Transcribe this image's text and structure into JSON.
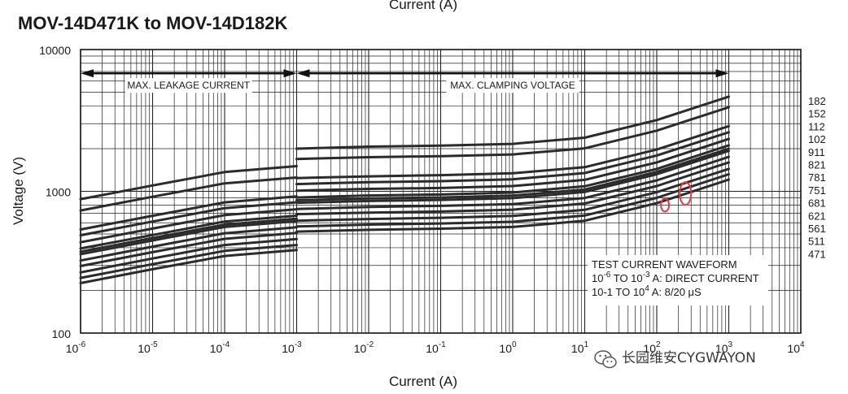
{
  "chart_data": {
    "type": "line",
    "title": "MOV-14D471K to MOV-14D182K",
    "top_axis_label": "Current (A)",
    "xlabel": "Current (A)",
    "ylabel": "Voltage (V)",
    "xscale": "log",
    "yscale": "log",
    "xlim": [
      1e-06,
      10000
    ],
    "ylim": [
      100,
      10000
    ],
    "x_ticks": [
      {
        "base": "10",
        "exp": "-6"
      },
      {
        "base": "10",
        "exp": "-5"
      },
      {
        "base": "10",
        "exp": "-4"
      },
      {
        "base": "10",
        "exp": "-3"
      },
      {
        "base": "10",
        "exp": "-2"
      },
      {
        "base": "10",
        "exp": "-1"
      },
      {
        "base": "10",
        "exp": "0"
      },
      {
        "base": "10",
        "exp": "1"
      },
      {
        "base": "10",
        "exp": "2"
      },
      {
        "base": "10",
        "exp": "3"
      },
      {
        "base": "10",
        "exp": "4"
      }
    ],
    "y_ticks": [
      "100",
      "1000",
      "10000"
    ],
    "grid": true,
    "regions": [
      {
        "label": "MAX. LEAKAGE CURRENT",
        "from": 1e-06,
        "to": 0.001
      },
      {
        "label": "MAX. CLAMPING VOLTAGE",
        "from": 0.001,
        "to": 1000
      }
    ],
    "note": {
      "line1": "TEST CURRENT WAVEFORM",
      "line2_pre": "10",
      "line2_e1": "-6",
      "line2_mid": " TO 10",
      "line2_e2": "-3",
      "line2_post": " A: DIRECT CURRENT",
      "line3_pre": "10-1 TO 10",
      "line3_e1": "4",
      "line3_post": " A: 8/20 μS"
    },
    "series": [
      {
        "name": "471",
        "leakage": [
          [
            1e-06,
            225
          ],
          [
            1e-05,
            282
          ],
          [
            0.0001,
            350
          ],
          [
            0.001,
            385
          ]
        ],
        "clamp": [
          [
            0.001,
            520
          ],
          [
            0.01,
            535
          ],
          [
            0.1,
            545
          ],
          [
            1,
            560
          ],
          [
            10,
            620
          ],
          [
            100,
            825
          ],
          [
            1000,
            1210
          ]
        ]
      },
      {
        "name": "511",
        "leakage": [
          [
            1e-06,
            245
          ],
          [
            1e-05,
            306
          ],
          [
            0.0001,
            380
          ],
          [
            0.001,
            418
          ]
        ],
        "clamp": [
          [
            0.001,
            565
          ],
          [
            0.01,
            582
          ],
          [
            0.1,
            593
          ],
          [
            1,
            610
          ],
          [
            10,
            675
          ],
          [
            100,
            900
          ],
          [
            1000,
            1320
          ]
        ]
      },
      {
        "name": "561",
        "leakage": [
          [
            1e-06,
            268
          ],
          [
            1e-05,
            336
          ],
          [
            0.0001,
            418
          ],
          [
            0.001,
            460
          ]
        ],
        "clamp": [
          [
            0.001,
            620
          ],
          [
            0.01,
            638
          ],
          [
            0.1,
            650
          ],
          [
            1,
            670
          ],
          [
            10,
            740
          ],
          [
            100,
            985
          ],
          [
            1000,
            1440
          ]
        ]
      },
      {
        "name": "621",
        "leakage": [
          [
            1e-06,
            297
          ],
          [
            1e-05,
            372
          ],
          [
            0.0001,
            462
          ],
          [
            0.001,
            508
          ]
        ],
        "clamp": [
          [
            0.001,
            690
          ],
          [
            0.01,
            707
          ],
          [
            0.1,
            720
          ],
          [
            1,
            742
          ],
          [
            10,
            820
          ],
          [
            100,
            1090
          ],
          [
            1000,
            1600
          ]
        ]
      },
      {
        "name": "681",
        "leakage": [
          [
            1e-06,
            325
          ],
          [
            1e-05,
            407
          ],
          [
            0.0001,
            506
          ],
          [
            0.001,
            557
          ]
        ],
        "clamp": [
          [
            0.001,
            750
          ],
          [
            0.01,
            775
          ],
          [
            0.1,
            790
          ],
          [
            1,
            812
          ],
          [
            10,
            898
          ],
          [
            100,
            1195
          ],
          [
            1000,
            1750
          ]
        ]
      },
      {
        "name": "751",
        "leakage": [
          [
            1e-06,
            360
          ],
          [
            1e-05,
            450
          ],
          [
            0.0001,
            560
          ],
          [
            0.001,
            615
          ]
        ],
        "clamp": [
          [
            0.001,
            830
          ],
          [
            0.01,
            855
          ],
          [
            0.1,
            870
          ],
          [
            1,
            895
          ],
          [
            10,
            990
          ],
          [
            100,
            1320
          ],
          [
            1000,
            1930
          ]
        ]
      },
      {
        "name": "781",
        "leakage": [
          [
            1e-06,
            375
          ],
          [
            1e-05,
            468
          ],
          [
            0.0001,
            582
          ],
          [
            0.001,
            640
          ]
        ],
        "clamp": [
          [
            0.001,
            865
          ],
          [
            0.01,
            890
          ],
          [
            0.1,
            905
          ],
          [
            1,
            932
          ],
          [
            10,
            1030
          ],
          [
            100,
            1370
          ],
          [
            1000,
            2000
          ]
        ]
      },
      {
        "name": "821",
        "leakage": [
          [
            1e-06,
            395
          ],
          [
            1e-05,
            492
          ],
          [
            0.0001,
            612
          ],
          [
            0.001,
            673
          ]
        ],
        "clamp": [
          [
            0.001,
            905
          ],
          [
            0.01,
            935
          ],
          [
            0.1,
            950
          ],
          [
            1,
            980
          ],
          [
            10,
            1085
          ],
          [
            100,
            1440
          ],
          [
            1000,
            2110
          ]
        ]
      },
      {
        "name": "911",
        "leakage": [
          [
            1e-06,
            437
          ],
          [
            1e-05,
            546
          ],
          [
            0.0001,
            679
          ],
          [
            0.001,
            747
          ]
        ],
        "clamp": [
          [
            0.001,
            1010
          ],
          [
            0.01,
            1040
          ],
          [
            0.1,
            1055
          ],
          [
            1,
            1090
          ],
          [
            10,
            1205
          ],
          [
            100,
            1600
          ],
          [
            1000,
            2340
          ]
        ]
      },
      {
        "name": "102",
        "leakage": [
          [
            1e-06,
            490
          ],
          [
            1e-05,
            612
          ],
          [
            0.0001,
            761
          ],
          [
            0.001,
            837
          ]
        ],
        "clamp": [
          [
            0.001,
            1125
          ],
          [
            0.01,
            1160
          ],
          [
            0.1,
            1180
          ],
          [
            1,
            1215
          ],
          [
            10,
            1345
          ],
          [
            100,
            1790
          ],
          [
            1000,
            2610
          ]
        ]
      },
      {
        "name": "112",
        "leakage": [
          [
            1e-06,
            538
          ],
          [
            1e-05,
            672
          ],
          [
            0.0001,
            836
          ],
          [
            0.001,
            920
          ]
        ],
        "clamp": [
          [
            0.001,
            1240
          ],
          [
            0.01,
            1275
          ],
          [
            0.1,
            1300
          ],
          [
            1,
            1340
          ],
          [
            10,
            1480
          ],
          [
            100,
            1970
          ],
          [
            1000,
            2880
          ]
        ]
      },
      {
        "name": "152",
        "leakage": [
          [
            1e-06,
            732
          ],
          [
            1e-05,
            915
          ],
          [
            0.0001,
            1138
          ],
          [
            0.001,
            1252
          ]
        ],
        "clamp": [
          [
            0.001,
            1690
          ],
          [
            0.01,
            1740
          ],
          [
            0.1,
            1770
          ],
          [
            1,
            1820
          ],
          [
            10,
            2010
          ],
          [
            100,
            2680
          ],
          [
            1000,
            3920
          ]
        ]
      },
      {
        "name": "182",
        "leakage": [
          [
            1e-06,
            880
          ],
          [
            1e-05,
            1100
          ],
          [
            0.0001,
            1368
          ],
          [
            0.001,
            1505
          ]
        ],
        "clamp": [
          [
            0.001,
            2000
          ],
          [
            0.01,
            2065
          ],
          [
            0.1,
            2100
          ],
          [
            1,
            2160
          ],
          [
            10,
            2390
          ],
          [
            100,
            3180
          ],
          [
            1000,
            4650
          ]
        ]
      }
    ],
    "highlight_marks": [
      {
        "x": 130,
        "y": 800,
        "color": "#e8393a"
      },
      {
        "x": 250,
        "y": 965,
        "color": "#e8393a"
      }
    ],
    "watermark": "长园维安CYGWAYON"
  }
}
